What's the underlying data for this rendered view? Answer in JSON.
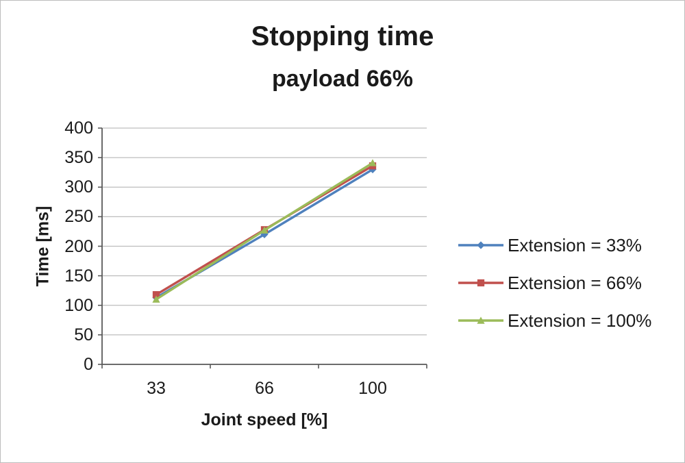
{
  "title": "Stopping time",
  "subtitle": "payload 66%",
  "chart_data": {
    "type": "line",
    "categories": [
      "33",
      "66",
      "100"
    ],
    "series": [
      {
        "name": "Extension = 33%",
        "values": [
          113,
          220,
          330
        ],
        "color": "#4F81BD",
        "marker": "diamond"
      },
      {
        "name": "Extension = 66%",
        "values": [
          118,
          228,
          336
        ],
        "color": "#C0504D",
        "marker": "square"
      },
      {
        "name": "Extension = 100%",
        "values": [
          110,
          227,
          341
        ],
        "color": "#9BBB59",
        "marker": "triangle"
      }
    ],
    "title": "Stopping time",
    "subtitle": "payload 66%",
    "xlabel": "Joint speed [%]",
    "ylabel": "Time [ms]",
    "ylim": [
      0,
      400
    ],
    "ytick_step": 50,
    "grid": true,
    "legend_position": "right",
    "colors": {
      "axis": "#595959",
      "gridline": "#bdbdbd"
    }
  }
}
